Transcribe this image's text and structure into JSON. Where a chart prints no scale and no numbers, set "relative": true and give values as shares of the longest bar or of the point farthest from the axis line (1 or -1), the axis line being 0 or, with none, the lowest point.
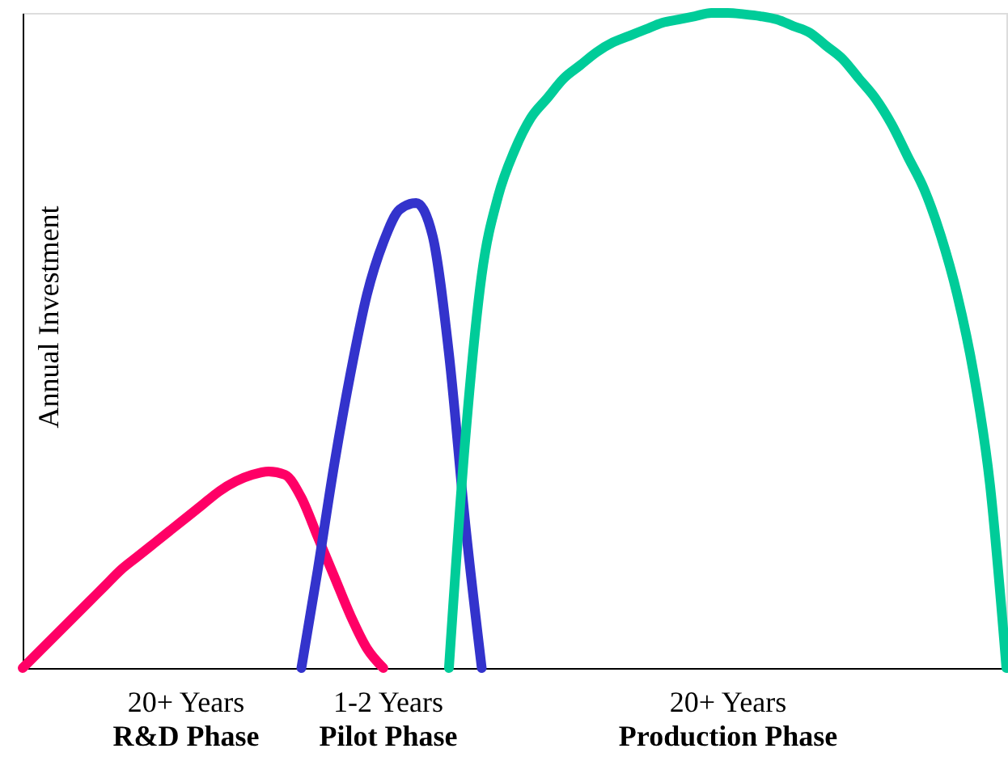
{
  "chart_data": {
    "type": "line",
    "relative": true,
    "ylabel": "Annual Investment",
    "categories": [
      null,
      null,
      null,
      null,
      null,
      null,
      null,
      null,
      null,
      null,
      null,
      null,
      null,
      null,
      null,
      null,
      null,
      null,
      null,
      null,
      null,
      null,
      null,
      null,
      null,
      null,
      null,
      null,
      null,
      null,
      null,
      null,
      null,
      null,
      null,
      null,
      null,
      null,
      null,
      null,
      null,
      null,
      null,
      null,
      null,
      null,
      null,
      null,
      null,
      null,
      null,
      null,
      null,
      null,
      null,
      null,
      null,
      null,
      null,
      null,
      null
    ],
    "series": [
      {
        "color": "#ff0066",
        "values": [
          0,
          0.025,
          0.05,
          0.075,
          0.1,
          0.125,
          0.15,
          0.17,
          0.19,
          0.21,
          0.23,
          0.25,
          0.27,
          0.285,
          0.295,
          0.3,
          0.295,
          0.26,
          0.2,
          0.14,
          0.08,
          0.03,
          0,
          null,
          null,
          null,
          null,
          null,
          null,
          null,
          null,
          null,
          null,
          null,
          null,
          null,
          null,
          null,
          null,
          null,
          null,
          null,
          null,
          null,
          null,
          null,
          null,
          null,
          null,
          null,
          null,
          null,
          null,
          null,
          null,
          null,
          null,
          null,
          null,
          null,
          null
        ]
      },
      {
        "color": "#3333cc",
        "values": [
          null,
          null,
          null,
          null,
          null,
          null,
          null,
          null,
          null,
          null,
          null,
          null,
          null,
          null,
          null,
          null,
          null,
          0,
          0.15,
          0.31,
          0.45,
          0.57,
          0.65,
          0.7,
          0.71,
          0.66,
          0.48,
          0.22,
          0,
          null,
          null,
          null,
          null,
          null,
          null,
          null,
          null,
          null,
          null,
          null,
          null,
          null,
          null,
          null,
          null,
          null,
          null,
          null,
          null,
          null,
          null,
          null,
          null,
          null,
          null,
          null,
          null,
          null,
          null,
          null,
          null
        ]
      },
      {
        "color": "#00cc99",
        "values": [
          null,
          null,
          null,
          null,
          null,
          null,
          null,
          null,
          null,
          null,
          null,
          null,
          null,
          null,
          null,
          null,
          null,
          null,
          null,
          null,
          null,
          null,
          null,
          null,
          null,
          null,
          0,
          0.35,
          0.6,
          0.72,
          0.79,
          0.84,
          0.87,
          0.9,
          0.92,
          0.94,
          0.955,
          0.965,
          0.975,
          0.985,
          0.99,
          0.995,
          1,
          1,
          0.998,
          0.995,
          0.99,
          0.98,
          0.97,
          0.95,
          0.93,
          0.9,
          0.87,
          0.83,
          0.78,
          0.73,
          0.66,
          0.57,
          0.45,
          0.28,
          0
        ]
      }
    ],
    "annotations": [
      "20+ Years",
      "R&D Phase",
      "1-2 Years",
      "Pilot Phase",
      "20+ Years",
      "Production  Phase"
    ]
  }
}
